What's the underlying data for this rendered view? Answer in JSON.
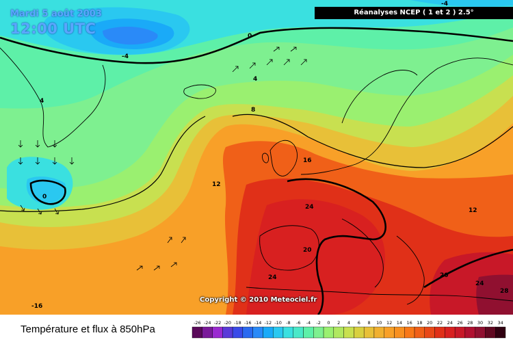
{
  "header": {
    "date": "Mardi 5 août 2003",
    "time": "12:00 UTC",
    "source": "Réanalyses NCEP ( 1 et 2 ) 2.5°"
  },
  "copyright": "Copyright © 2010 Meteociel.fr",
  "footer": {
    "title": "Température et flux à 850hPa"
  },
  "isotherm_labels": [
    "-4",
    "0",
    "-4",
    "4",
    "4",
    "8",
    "12",
    "16",
    "24",
    "20",
    "24",
    "20",
    "24",
    "28",
    "12",
    "-16",
    "0"
  ],
  "legend": {
    "ticks": [
      "-26",
      "-24",
      "-22",
      "-20",
      "-18",
      "-16",
      "-14",
      "-12",
      "-10",
      "-8",
      "-6",
      "-4",
      "-2",
      "0",
      "2",
      "4",
      "6",
      "8",
      "10",
      "12",
      "14",
      "16",
      "18",
      "20",
      "22",
      "24",
      "26",
      "28",
      "30",
      "32",
      "34"
    ],
    "colors": [
      "#5a0a5a",
      "#7a1a9a",
      "#9a2ad0",
      "#5a3ad8",
      "#3a4ae8",
      "#2a6af0",
      "#2a8af8",
      "#1aaaf8",
      "#2ac8f0",
      "#3ae0e0",
      "#4ae8c8",
      "#5ef0a8",
      "#7ef090",
      "#9af070",
      "#b0e860",
      "#c8e050",
      "#d8d040",
      "#e8c038",
      "#f0b030",
      "#f8a028",
      "#f89020",
      "#f87818",
      "#f06018",
      "#e84818",
      "#e03018",
      "#d82020",
      "#c81828",
      "#b01030",
      "#901030",
      "#600820",
      "#300010"
    ]
  }
}
